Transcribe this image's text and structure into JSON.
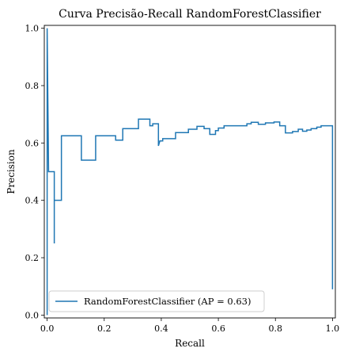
{
  "chart_data": {
    "type": "line",
    "title": "Curva Precisão-Recall RandomForestClassifier",
    "xlabel": "Recall",
    "ylabel": "Precision",
    "xlim": [
      -0.01,
      1.01
    ],
    "ylim": [
      -0.01,
      1.01
    ],
    "xticks": [
      0.0,
      0.2,
      0.4,
      0.6,
      0.8,
      1.0
    ],
    "xtick_labels": [
      "0.0",
      "0.2",
      "0.4",
      "0.6",
      "0.8",
      "1.0"
    ],
    "yticks": [
      0.0,
      0.2,
      0.4,
      0.6,
      0.8,
      1.0
    ],
    "ytick_labels": [
      "0.0",
      "0.2",
      "0.4",
      "0.6",
      "0.8",
      "1.0"
    ],
    "grid": false,
    "legend": {
      "placement": "lower-left"
    },
    "series": [
      {
        "name": "RandomForestClassifier (AP = 0.63)",
        "color": "#1f77b4",
        "drawstyle": "steps-post",
        "recall": [
          0.0,
          0.0,
          0.005,
          0.025,
          0.025,
          0.025,
          0.05,
          0.05,
          0.05,
          0.12,
          0.12,
          0.17,
          0.17,
          0.24,
          0.24,
          0.265,
          0.265,
          0.32,
          0.32,
          0.36,
          0.36,
          0.37,
          0.37,
          0.39,
          0.39,
          0.395,
          0.4,
          0.405,
          0.405,
          0.45,
          0.45,
          0.495,
          0.495,
          0.525,
          0.525,
          0.55,
          0.55,
          0.57,
          0.57,
          0.59,
          0.59,
          0.6,
          0.6,
          0.62,
          0.62,
          0.7,
          0.7,
          0.715,
          0.715,
          0.74,
          0.74,
          0.765,
          0.765,
          0.795,
          0.795,
          0.815,
          0.815,
          0.835,
          0.835,
          0.86,
          0.86,
          0.88,
          0.88,
          0.895,
          0.895,
          0.91,
          0.91,
          0.925,
          0.925,
          0.945,
          0.945,
          0.96,
          0.96,
          0.975,
          0.975,
          1.0,
          1.0,
          1.0
        ],
        "precision": [
          0.0,
          1.0,
          0.5,
          0.5,
          0.25,
          0.4,
          0.4,
          0.625,
          0.625,
          0.625,
          0.54,
          0.54,
          0.625,
          0.625,
          0.61,
          0.61,
          0.65,
          0.65,
          0.683,
          0.683,
          0.66,
          0.66,
          0.667,
          0.667,
          0.59,
          0.607,
          0.607,
          0.607,
          0.615,
          0.615,
          0.636,
          0.636,
          0.648,
          0.648,
          0.658,
          0.658,
          0.65,
          0.65,
          0.63,
          0.63,
          0.643,
          0.643,
          0.652,
          0.652,
          0.66,
          0.66,
          0.667,
          0.667,
          0.672,
          0.672,
          0.665,
          0.665,
          0.67,
          0.67,
          0.673,
          0.673,
          0.66,
          0.66,
          0.635,
          0.635,
          0.64,
          0.64,
          0.648,
          0.648,
          0.641,
          0.641,
          0.645,
          0.645,
          0.65,
          0.65,
          0.655,
          0.655,
          0.66,
          0.66,
          0.66,
          0.66,
          0.09,
          0.09
        ]
      }
    ]
  }
}
